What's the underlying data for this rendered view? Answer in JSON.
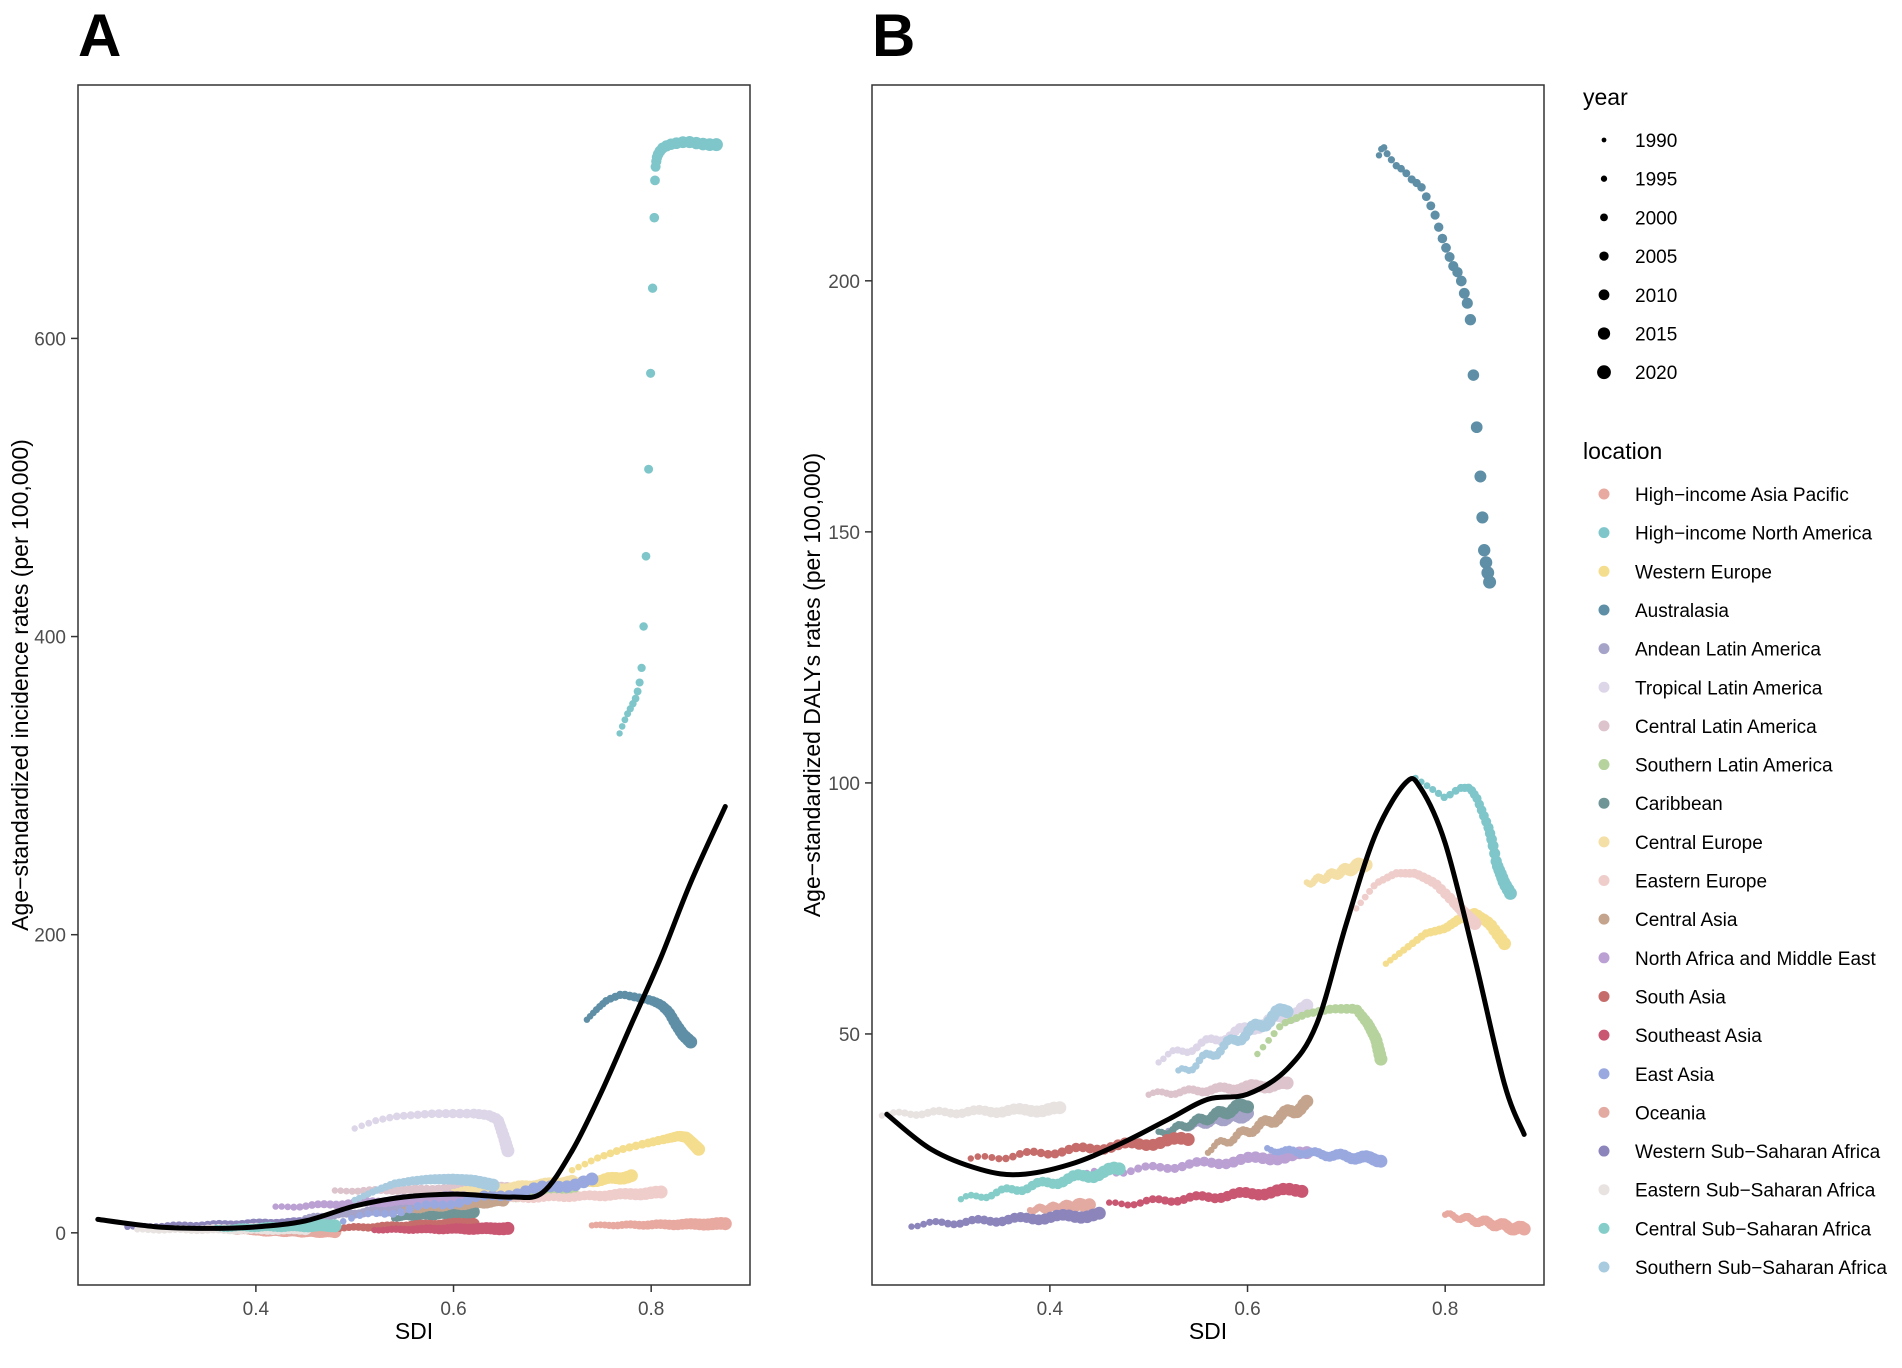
{
  "legend": {
    "year_title": "year",
    "years": [
      "1990",
      "1995",
      "2000",
      "2005",
      "2010",
      "2015",
      "2020"
    ],
    "location_title": "location"
  },
  "locations": [
    {
      "name": "High−income Asia Pacific",
      "color": "#e8a9a0"
    },
    {
      "name": "High−income North America",
      "color": "#7fc6ca"
    },
    {
      "name": "Western Europe",
      "color": "#f5dd8e"
    },
    {
      "name": "Australasia",
      "color": "#5f8fa6"
    },
    {
      "name": "Andean Latin America",
      "color": "#a6a3c9"
    },
    {
      "name": "Tropical Latin America",
      "color": "#ddd6e8"
    },
    {
      "name": "Central Latin America",
      "color": "#dcc3cc"
    },
    {
      "name": "Southern Latin America",
      "color": "#b6d29d"
    },
    {
      "name": "Caribbean",
      "color": "#6f9596"
    },
    {
      "name": "Central Europe",
      "color": "#f4dfa6"
    },
    {
      "name": "Eastern Europe",
      "color": "#efcdcb"
    },
    {
      "name": "Central Asia",
      "color": "#c4a48d"
    },
    {
      "name": "North Africa and Middle East",
      "color": "#bba1d3"
    },
    {
      "name": "South Asia",
      "color": "#c66d6b"
    },
    {
      "name": "Southeast Asia",
      "color": "#c95772"
    },
    {
      "name": "East Asia",
      "color": "#99a9e0"
    },
    {
      "name": "Oceania",
      "color": "#e3aaa2"
    },
    {
      "name": "Western Sub−Saharan Africa",
      "color": "#8c85bc"
    },
    {
      "name": "Eastern Sub−Saharan Africa",
      "color": "#e8e2e1"
    },
    {
      "name": "Central Sub−Saharan Africa",
      "color": "#85cdc8"
    },
    {
      "name": "Southern Sub−Saharan Africa",
      "color": "#a9cbe0"
    }
  ],
  "chart_data": [
    {
      "type": "scatter",
      "panel": "A",
      "xlabel": "SDI",
      "ylabel": "Age−standardized incidence rates (per 100,000)",
      "xlim": [
        0.22,
        0.9
      ],
      "ylim": [
        -35,
        770
      ],
      "xticks": [
        0.4,
        0.6,
        0.8
      ],
      "yticks": [
        0,
        200,
        400,
        600
      ],
      "grid": false,
      "smooth": {
        "x": [
          0.24,
          0.3,
          0.35,
          0.4,
          0.45,
          0.5,
          0.55,
          0.6,
          0.63,
          0.66,
          0.69,
          0.72,
          0.75,
          0.78,
          0.81,
          0.84,
          0.875
        ],
        "y": [
          9,
          4,
          3,
          4,
          8,
          18,
          24,
          26,
          25,
          24,
          27,
          55,
          95,
          140,
          185,
          235,
          286
        ]
      },
      "series": [
        {
          "loc": 0,
          "x0": 0.74,
          "x1": 0.875,
          "y0": 5,
          "y1": 6
        },
        {
          "loc": 0,
          "x0": 0.4,
          "x1": 0.48,
          "y0": 0,
          "y1": 1
        },
        {
          "loc": 1,
          "xs": [
            0.768,
            0.772,
            0.776,
            0.78,
            0.784,
            0.787,
            0.79,
            0.793,
            0.797,
            0.8,
            0.803,
            0.804,
            0.805,
            0.806,
            0.808,
            0.812,
            0.818,
            0.826,
            0.836,
            0.846,
            0.856,
            0.866
          ],
          "ys": [
            335,
            342,
            348,
            353,
            358,
            365,
            375,
            416,
            500,
            595,
            675,
            712,
            718,
            722,
            725,
            728,
            730,
            731,
            732,
            731,
            730,
            730
          ]
        },
        {
          "loc": 2,
          "xs": [
            0.72,
            0.745,
            0.77,
            0.795,
            0.815,
            0.828,
            0.836,
            0.842,
            0.848
          ],
          "ys": [
            42,
            50,
            56,
            60,
            63,
            65,
            64,
            60,
            56
          ]
        },
        {
          "loc": 2,
          "x0": 0.66,
          "x1": 0.78,
          "y0": 28,
          "y1": 38
        },
        {
          "loc": 3,
          "xs": [
            0.735,
            0.745,
            0.755,
            0.77,
            0.785,
            0.8,
            0.81,
            0.818,
            0.825,
            0.832,
            0.84
          ],
          "ys": [
            143,
            150,
            156,
            160,
            158,
            156,
            153,
            148,
            140,
            133,
            128
          ]
        },
        {
          "loc": 4,
          "x0": 0.45,
          "x1": 0.58,
          "y0": 10,
          "y1": 18
        },
        {
          "loc": 5,
          "xs": [
            0.5,
            0.52,
            0.54,
            0.56,
            0.58,
            0.6,
            0.62,
            0.635,
            0.645,
            0.648,
            0.652,
            0.655
          ],
          "ys": [
            70,
            75,
            78,
            79,
            80,
            80,
            80,
            79,
            76,
            70,
            62,
            55
          ]
        },
        {
          "loc": 6,
          "x0": 0.48,
          "x1": 0.66,
          "y0": 28,
          "y1": 30
        },
        {
          "loc": 7,
          "x0": 0.64,
          "x1": 0.72,
          "y0": 22,
          "y1": 28
        },
        {
          "loc": 8,
          "x0": 0.54,
          "x1": 0.62,
          "y0": 10,
          "y1": 14
        },
        {
          "loc": 9,
          "x0": 0.6,
          "x1": 0.72,
          "y0": 28,
          "y1": 34
        },
        {
          "loc": 10,
          "x0": 0.65,
          "x1": 0.81,
          "y0": 22,
          "y1": 27
        },
        {
          "loc": 11,
          "x0": 0.55,
          "x1": 0.65,
          "y0": 15,
          "y1": 22
        },
        {
          "loc": 12,
          "x0": 0.42,
          "x1": 0.61,
          "y0": 17,
          "y1": 24
        },
        {
          "loc": 13,
          "x0": 0.47,
          "x1": 0.62,
          "y0": 3,
          "y1": 6
        },
        {
          "loc": 14,
          "x0": 0.52,
          "x1": 0.655,
          "y0": 2,
          "y1": 3
        },
        {
          "loc": 15,
          "x0": 0.48,
          "x1": 0.74,
          "y0": 8,
          "y1": 35
        },
        {
          "loc": 16,
          "x0": 0.38,
          "x1": 0.47,
          "y0": 1,
          "y1": 2
        },
        {
          "loc": 17,
          "x0": 0.27,
          "x1": 0.45,
          "y0": 4,
          "y1": 6
        },
        {
          "loc": 18,
          "x0": 0.28,
          "x1": 0.45,
          "y0": 2,
          "y1": 3
        },
        {
          "loc": 19,
          "x0": 0.36,
          "x1": 0.48,
          "y0": 3,
          "y1": 5
        },
        {
          "loc": 20,
          "xs": [
            0.5,
            0.52,
            0.54,
            0.56,
            0.58,
            0.6,
            0.62,
            0.64
          ],
          "ys": [
            22,
            28,
            33,
            35,
            36,
            36,
            35,
            32
          ]
        }
      ]
    },
    {
      "type": "scatter",
      "panel": "B",
      "xlabel": "SDI",
      "ylabel": "Age−standardized DALYs rates (per 100,000)",
      "xlim": [
        0.22,
        0.9
      ],
      "ylim": [
        0,
        239
      ],
      "xticks": [
        0.4,
        0.6,
        0.8
      ],
      "yticks": [
        50,
        100,
        150,
        200
      ],
      "grid": false,
      "smooth": {
        "x": [
          0.235,
          0.28,
          0.33,
          0.37,
          0.42,
          0.47,
          0.52,
          0.56,
          0.6,
          0.64,
          0.67,
          0.7,
          0.73,
          0.76,
          0.775,
          0.8,
          0.83,
          0.86,
          0.88
        ],
        "y": [
          34,
          27,
          23,
          22,
          24,
          28,
          33,
          37,
          38,
          43,
          52,
          72,
          90,
          100,
          99,
          88,
          65,
          40,
          30
        ]
      },
      "series": [
        {
          "loc": 0,
          "x0": 0.8,
          "x1": 0.88,
          "y0": 14,
          "y1": 11
        },
        {
          "loc": 1,
          "xs": [
            0.77,
            0.785,
            0.8,
            0.815,
            0.825,
            0.832,
            0.838,
            0.844,
            0.848,
            0.852,
            0.856,
            0.86,
            0.866
          ],
          "ys": [
            101,
            99,
            97,
            99,
            99,
            97,
            94,
            91,
            88,
            84,
            82,
            80,
            78
          ]
        },
        {
          "loc": 2,
          "xs": [
            0.74,
            0.76,
            0.78,
            0.8,
            0.815,
            0.83,
            0.845,
            0.86
          ],
          "ys": [
            64,
            67,
            70,
            71,
            73,
            74,
            72,
            68
          ]
        },
        {
          "loc": 3,
          "xs": [
            0.733,
            0.737,
            0.742,
            0.75,
            0.758,
            0.767,
            0.775,
            0.783,
            0.79,
            0.796,
            0.802,
            0.808,
            0.815,
            0.82,
            0.825,
            0.83,
            0.836,
            0.839,
            0.842,
            0.845
          ],
          "ys": [
            225,
            227,
            225,
            223,
            222,
            220,
            219,
            216,
            213,
            209,
            206,
            203,
            201,
            197,
            194,
            176,
            160,
            147,
            143,
            140
          ]
        },
        {
          "loc": 4,
          "x0": 0.52,
          "x1": 0.6,
          "y0": 31,
          "y1": 34
        },
        {
          "loc": 5,
          "x0": 0.51,
          "x1": 0.66,
          "y0": 45,
          "y1": 55
        },
        {
          "loc": 6,
          "x0": 0.5,
          "x1": 0.64,
          "y0": 38,
          "y1": 40
        },
        {
          "loc": 7,
          "xs": [
            0.61,
            0.635,
            0.66,
            0.685,
            0.71,
            0.722,
            0.73,
            0.735
          ],
          "ys": [
            46,
            52,
            54,
            55,
            55,
            52,
            49,
            45
          ]
        },
        {
          "loc": 8,
          "x0": 0.51,
          "x1": 0.6,
          "y0": 30,
          "y1": 36
        },
        {
          "loc": 9,
          "x0": 0.66,
          "x1": 0.72,
          "y0": 80,
          "y1": 84
        },
        {
          "loc": 10,
          "xs": [
            0.71,
            0.73,
            0.75,
            0.77,
            0.79,
            0.81,
            0.82,
            0.83
          ],
          "ys": [
            75,
            80,
            82,
            82,
            80,
            76,
            74,
            72
          ]
        },
        {
          "loc": 11,
          "x0": 0.56,
          "x1": 0.66,
          "y0": 27,
          "y1": 36
        },
        {
          "loc": 12,
          "x0": 0.43,
          "x1": 0.66,
          "y0": 22,
          "y1": 26
        },
        {
          "loc": 13,
          "x0": 0.32,
          "x1": 0.54,
          "y0": 25,
          "y1": 29
        },
        {
          "loc": 14,
          "x0": 0.46,
          "x1": 0.655,
          "y0": 16,
          "y1": 19
        },
        {
          "loc": 15,
          "x0": 0.62,
          "x1": 0.735,
          "y0": 27,
          "y1": 25
        },
        {
          "loc": 16,
          "x0": 0.38,
          "x1": 0.44,
          "y0": 15,
          "y1": 16
        },
        {
          "loc": 17,
          "x0": 0.26,
          "x1": 0.45,
          "y0": 12,
          "y1": 14
        },
        {
          "loc": 18,
          "x0": 0.23,
          "x1": 0.41,
          "y0": 34,
          "y1": 35
        },
        {
          "loc": 19,
          "x0": 0.31,
          "x1": 0.47,
          "y0": 17,
          "y1": 23
        },
        {
          "loc": 20,
          "x0": 0.53,
          "x1": 0.64,
          "y0": 42,
          "y1": 55
        }
      ]
    }
  ]
}
